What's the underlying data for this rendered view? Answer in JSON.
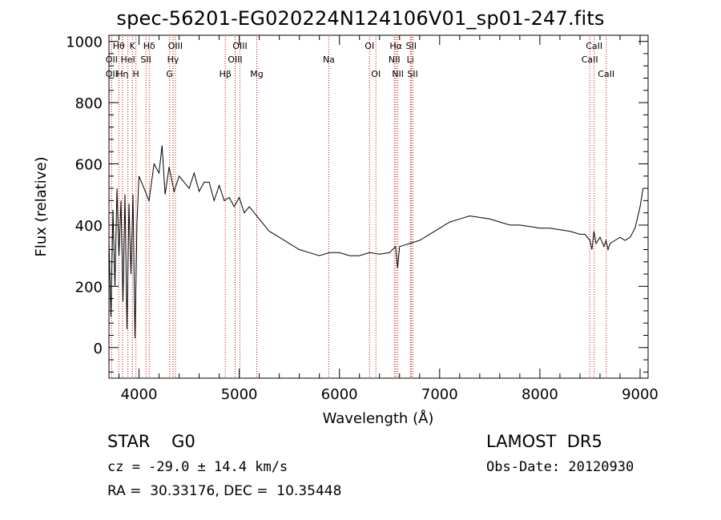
{
  "title": "spec-56201-EG020224N124106V01_sp01-247.fits",
  "info": {
    "object_class": "STAR    G0",
    "survey": "LAMOST  DR5",
    "cz": "cz = -29.0 ± 14.4 km/s",
    "obs_date": "Obs-Date: 20120930",
    "coords": "RA =  30.33176, DEC =  10.35448"
  },
  "chart_data": {
    "type": "line",
    "xlabel": "Wavelength (Å)",
    "ylabel": "Flux (relative)",
    "xlim": [
      3700,
      9080
    ],
    "ylim": [
      -100,
      1020
    ],
    "xticks": [
      4000,
      5000,
      6000,
      7000,
      8000,
      9000
    ],
    "yticks": [
      0,
      200,
      400,
      600,
      800,
      1000
    ],
    "x": [
      3700,
      3720,
      3740,
      3760,
      3780,
      3800,
      3820,
      3840,
      3860,
      3880,
      3900,
      3920,
      3940,
      3960,
      3980,
      4000,
      4050,
      4100,
      4150,
      4200,
      4230,
      4260,
      4300,
      4350,
      4400,
      4450,
      4500,
      4550,
      4600,
      4650,
      4700,
      4750,
      4800,
      4850,
      4900,
      4950,
      5000,
      5050,
      5100,
      5150,
      5200,
      5300,
      5400,
      5500,
      5600,
      5700,
      5800,
      5900,
      6000,
      6100,
      6200,
      6300,
      6400,
      6500,
      6560,
      6580,
      6600,
      6700,
      6800,
      6900,
      7000,
      7100,
      7200,
      7300,
      7400,
      7500,
      7600,
      7700,
      7800,
      7900,
      8000,
      8100,
      8200,
      8300,
      8400,
      8450,
      8500,
      8520,
      8540,
      8560,
      8600,
      8640,
      8660,
      8680,
      8700,
      8750,
      8800,
      8850,
      8900,
      8950,
      9000,
      9030
    ],
    "y": [
      350,
      100,
      450,
      200,
      520,
      300,
      480,
      150,
      500,
      60,
      470,
      240,
      500,
      30,
      410,
      560,
      520,
      480,
      600,
      570,
      660,
      500,
      590,
      510,
      560,
      540,
      520,
      570,
      510,
      540,
      540,
      480,
      530,
      480,
      490,
      460,
      490,
      440,
      460,
      440,
      420,
      380,
      360,
      340,
      320,
      310,
      300,
      310,
      310,
      300,
      300,
      310,
      305,
      310,
      330,
      260,
      330,
      340,
      350,
      370,
      390,
      410,
      420,
      430,
      425,
      420,
      410,
      400,
      400,
      395,
      390,
      390,
      385,
      380,
      370,
      370,
      350,
      320,
      380,
      340,
      360,
      330,
      350,
      320,
      340,
      350,
      360,
      350,
      360,
      390,
      460,
      520
    ],
    "lines": [
      {
        "label": "Hθ",
        "x": 3798,
        "row": 0
      },
      {
        "label": "OII",
        "x": 3727,
        "row": 1
      },
      {
        "label": "OII",
        "x": 3727,
        "row": 2
      },
      {
        "label": "K",
        "x": 3934,
        "row": 0
      },
      {
        "label": "HeI",
        "x": 3889,
        "row": 1
      },
      {
        "label": "Hη",
        "x": 3835,
        "row": 2
      },
      {
        "label": "Hδ",
        "x": 4102,
        "row": 0
      },
      {
        "label": "SII",
        "x": 4069,
        "row": 1
      },
      {
        "label": "H",
        "x": 3969,
        "row": 2
      },
      {
        "label": "OIII",
        "x": 4363,
        "row": 0
      },
      {
        "label": "Hγ",
        "x": 4340,
        "row": 1
      },
      {
        "label": "G",
        "x": 4305,
        "row": 2
      },
      {
        "label": "OIII",
        "x": 5007,
        "row": 0
      },
      {
        "label": "OIII",
        "x": 4959,
        "row": 1
      },
      {
        "label": "Hβ",
        "x": 4861,
        "row": 2
      },
      {
        "label": "Mg",
        "x": 5175,
        "row": 2
      },
      {
        "label": "Na",
        "x": 5894,
        "row": 1
      },
      {
        "label": "OI",
        "x": 6300,
        "row": 0
      },
      {
        "label": "OI",
        "x": 6364,
        "row": 2
      },
      {
        "label": "Hα",
        "x": 6563,
        "row": 0
      },
      {
        "label": "NII",
        "x": 6548,
        "row": 1
      },
      {
        "label": "NII",
        "x": 6583,
        "row": 2
      },
      {
        "label": "SII",
        "x": 6716,
        "row": 0
      },
      {
        "label": "Li",
        "x": 6708,
        "row": 1
      },
      {
        "label": "SII",
        "x": 6731,
        "row": 2
      },
      {
        "label": "CaII",
        "x": 8542,
        "row": 0
      },
      {
        "label": "CaII",
        "x": 8498,
        "row": 1
      },
      {
        "label": "CaII",
        "x": 8662,
        "row": 2
      }
    ],
    "colors": {
      "spectrum": "#000000",
      "line_markers": "#cc0000",
      "axes": "#000000"
    }
  }
}
